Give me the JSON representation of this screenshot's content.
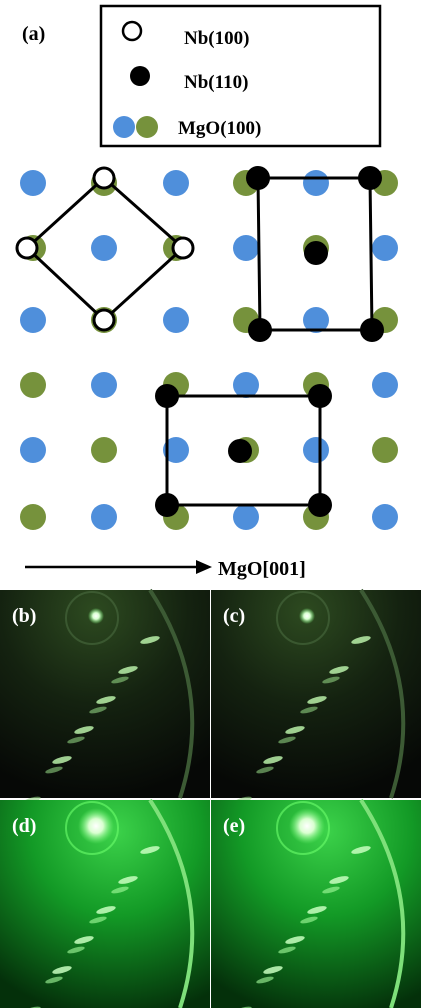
{
  "panel_a": {
    "label": "(a)",
    "legend": [
      "Nb(100)",
      "Nb(110)",
      "MgO(100)"
    ],
    "axis_label": "MgO[001]"
  },
  "panels": [
    "(b)",
    "(c)",
    "(d)",
    "(e)"
  ]
}
